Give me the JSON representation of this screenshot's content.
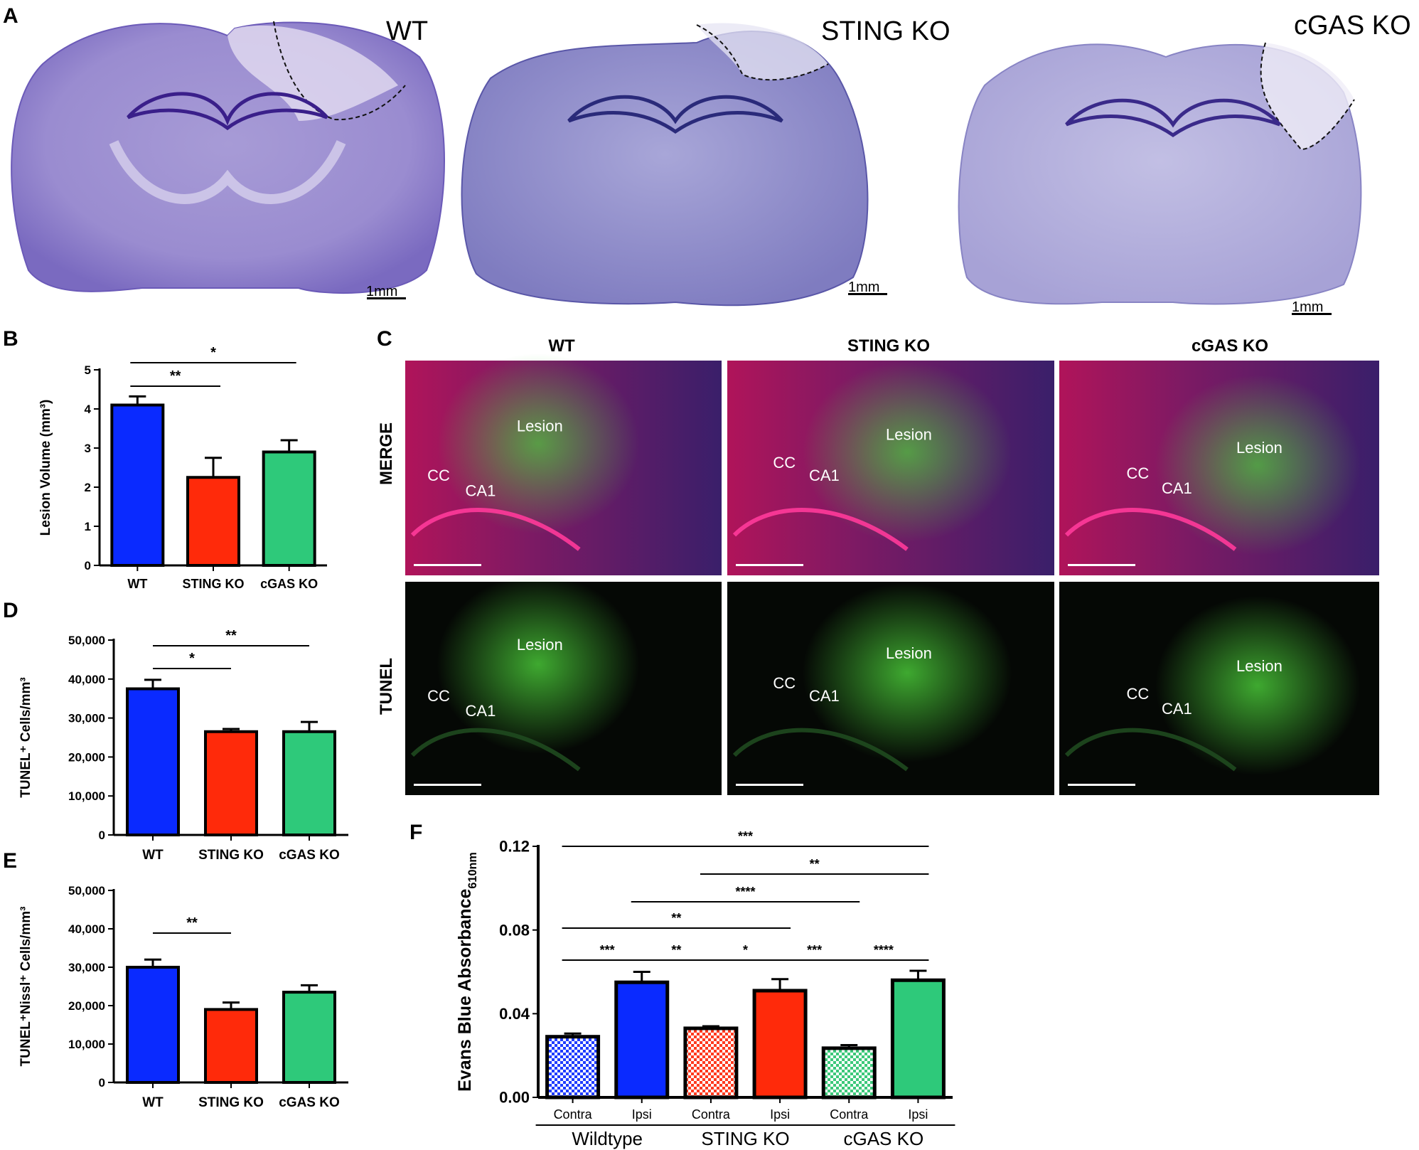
{
  "panel_letters": {
    "a": "A",
    "b": "B",
    "c": "C",
    "d": "D",
    "e": "E",
    "f": "F"
  },
  "panel_a": {
    "titles": [
      "WT",
      "STING KO",
      "cGAS KO"
    ],
    "scale": "1mm"
  },
  "panel_c": {
    "columns": [
      "WT",
      "STING KO",
      "cGAS KO"
    ],
    "rows": [
      "MERGE",
      "TUNEL"
    ],
    "labels": {
      "cc": "CC",
      "ca1": "CA1",
      "lesion": "Lesion"
    }
  },
  "colors": {
    "wt": "#0a2aff",
    "sting": "#ff2a0a",
    "cgas": "#2ec97a",
    "axis": "#000000"
  },
  "chart_data": [
    {
      "panel": "B",
      "type": "bar",
      "categories": [
        "WT",
        "STING KO",
        "cGAS KO"
      ],
      "values": [
        4.1,
        2.25,
        2.9
      ],
      "errors": [
        0.22,
        0.5,
        0.3
      ],
      "ylabel": "Lesion Volume (mm³)",
      "ylim": [
        0,
        5
      ],
      "yticks": [
        0,
        1,
        2,
        3,
        4,
        5
      ],
      "ytick_labels": [
        "0",
        "1",
        "2",
        "3",
        "4",
        "5"
      ],
      "significance": [
        {
          "from": 0,
          "to": 1,
          "label": "**"
        },
        {
          "from": 0,
          "to": 2,
          "label": "*"
        }
      ]
    },
    {
      "panel": "D",
      "type": "bar",
      "categories": [
        "WT",
        "STING KO",
        "cGAS KO"
      ],
      "values": [
        37500,
        26500,
        26500
      ],
      "errors": [
        2300,
        700,
        2500
      ],
      "ylabel": "TUNEL⁺ Cells/mm³",
      "ylim": [
        0,
        50000
      ],
      "yticks": [
        0,
        10000,
        20000,
        30000,
        40000,
        50000
      ],
      "ytick_labels": [
        "0",
        "10,000",
        "20,000",
        "30,000",
        "40,000",
        "50,000"
      ],
      "significance": [
        {
          "from": 0,
          "to": 1,
          "label": "*"
        },
        {
          "from": 0,
          "to": 2,
          "label": "**"
        }
      ]
    },
    {
      "panel": "E",
      "type": "bar",
      "categories": [
        "WT",
        "STING KO",
        "cGAS KO"
      ],
      "values": [
        30000,
        19000,
        23500
      ],
      "errors": [
        2000,
        1800,
        1800
      ],
      "ylabel": "TUNEL⁺Nissl⁺ Cells/mm³",
      "ylim": [
        0,
        50000
      ],
      "yticks": [
        0,
        10000,
        20000,
        30000,
        40000,
        50000
      ],
      "ytick_labels": [
        "0",
        "10,000",
        "20,000",
        "30,000",
        "40,000",
        "50,000"
      ],
      "significance": [
        {
          "from": 0,
          "to": 1,
          "label": "**"
        }
      ]
    },
    {
      "panel": "F",
      "type": "bar",
      "categories": [
        "Contra",
        "Ipsi",
        "Contra",
        "Ipsi",
        "Contra",
        "Ipsi"
      ],
      "groups": [
        "Wildtype",
        "STING KO",
        "cGAS KO"
      ],
      "values": [
        0.029,
        0.055,
        0.033,
        0.051,
        0.0235,
        0.056
      ],
      "errors": [
        0.0015,
        0.005,
        0.001,
        0.0055,
        0.0015,
        0.0045
      ],
      "ylabel": "Evans Blue Absorbance",
      "ylabel_sub": "610nm",
      "ylim": [
        0,
        0.12
      ],
      "yticks": [
        0,
        0.04,
        0.08,
        0.12
      ],
      "ytick_labels": [
        "0.00",
        "0.04",
        "0.08",
        "0.12"
      ],
      "significance": [
        {
          "from": 0,
          "to": 1,
          "label": "***"
        },
        {
          "from": 1,
          "to": 2,
          "label": "**"
        },
        {
          "from": 2,
          "to": 3,
          "label": "*"
        },
        {
          "from": 3,
          "to": 4,
          "label": "***"
        },
        {
          "from": 4,
          "to": 5,
          "label": "****"
        },
        {
          "from": 0,
          "to": 3,
          "label": "**"
        },
        {
          "from": 1,
          "to": 4,
          "label": "****"
        },
        {
          "from": 2,
          "to": 5,
          "label": "**"
        },
        {
          "from": 0,
          "to": 5,
          "label": "***"
        }
      ]
    }
  ]
}
